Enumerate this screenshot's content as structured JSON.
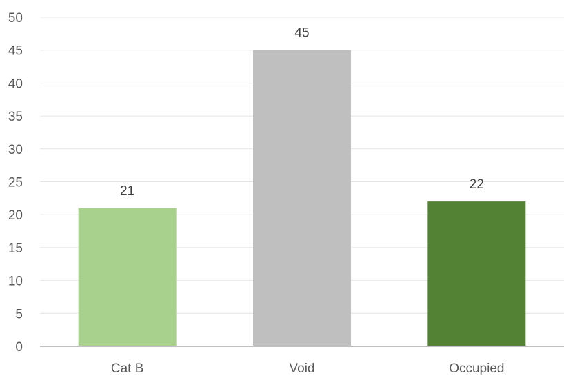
{
  "chart_data": {
    "type": "bar",
    "categories": [
      "Cat B",
      "Void",
      "Occupied"
    ],
    "values": [
      21,
      45,
      22
    ],
    "colors": [
      "#a9d18e",
      "#bfbfbf",
      "#548235"
    ],
    "title": "",
    "xlabel": "",
    "ylabel": "",
    "ylim": [
      0,
      50
    ],
    "yticks": [
      0,
      5,
      10,
      15,
      20,
      25,
      30,
      35,
      40,
      45,
      50
    ],
    "grid": true,
    "legend": "none",
    "data_labels": true
  }
}
